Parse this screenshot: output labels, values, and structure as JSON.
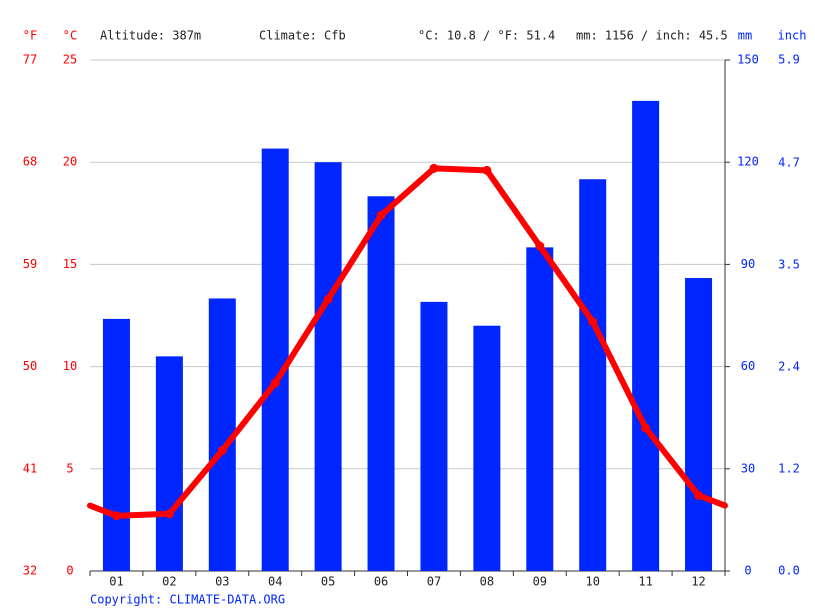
{
  "chart_data": {
    "type": "combo",
    "altitude": "Altitude: 387m",
    "climate": "Climate: Cfb",
    "temperature_mean": "°C: 10.8 / °F: 51.4",
    "precipitation_total": "mm: 1156 / inch: 45.5",
    "unit_f": "°F",
    "unit_c": "°C",
    "unit_mm": "mm",
    "unit_inch": "inch",
    "source": "Copyright: CLIMATE-DATA.ORG",
    "categories": [
      "01",
      "02",
      "03",
      "04",
      "05",
      "06",
      "07",
      "08",
      "09",
      "10",
      "11",
      "12"
    ],
    "series": [
      {
        "type": "bar",
        "axis": "y2",
        "color": "#0026ff",
        "values": [
          74,
          63,
          80,
          124,
          120,
          110,
          79,
          72,
          95,
          115,
          138,
          86
        ]
      },
      {
        "type": "line",
        "color": "#ff0000",
        "values": [
          2.7,
          2.8,
          5.9,
          9.2,
          13.3,
          17.4,
          19.7,
          19.6,
          15.9,
          12.2,
          7.0,
          3.7
        ]
      }
    ],
    "ylim": [
      0,
      25
    ],
    "yticks": [
      0,
      5,
      10,
      15,
      20,
      25
    ],
    "ylim_f": [
      32,
      77
    ],
    "yticks_f": [
      32,
      41,
      50,
      59,
      68,
      77
    ],
    "y2lim": [
      0,
      150
    ],
    "y2ticks": [
      0,
      30,
      60,
      90,
      120,
      150
    ],
    "y2lim_inch": [
      0,
      5.91
    ],
    "y2ticks_inch": [
      {
        "value": 0,
        "label": "0.0"
      },
      {
        "value": 1.18,
        "label": "1.2"
      },
      {
        "value": 2.36,
        "label": "2.4"
      },
      {
        "value": 3.54,
        "label": "3.5"
      },
      {
        "value": 4.72,
        "label": "4.7"
      },
      {
        "value": 5.91,
        "label": "5.9"
      }
    ],
    "grid": true
  }
}
